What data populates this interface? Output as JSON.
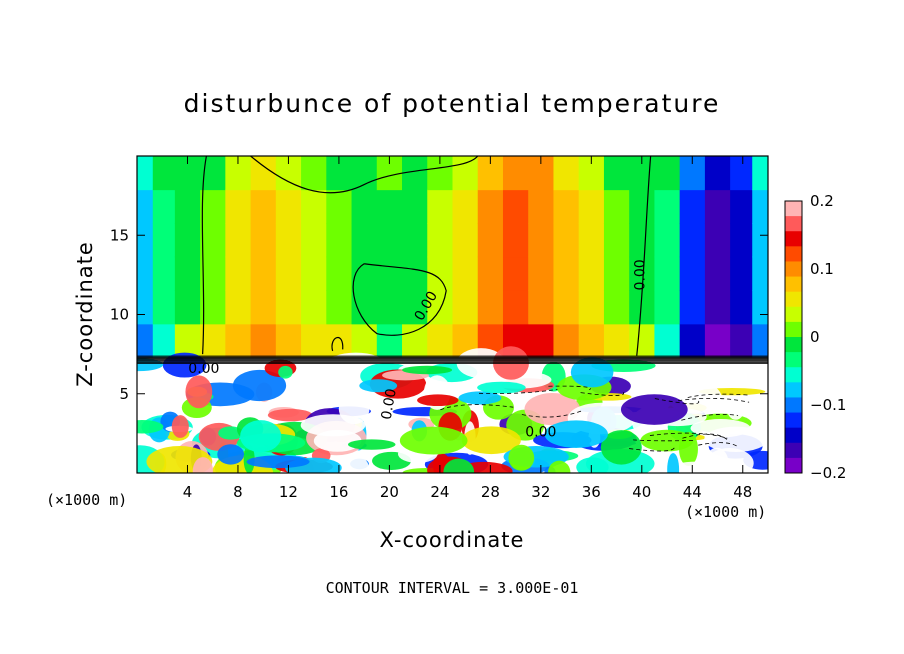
{
  "chart_data": {
    "type": "heatmap",
    "title": "disturbunce of potential temperature",
    "xlabel": "X-coordinate",
    "ylabel": "Z-coordinate",
    "x_unit": "(×1000 m)",
    "y_unit": "(×1000 m)",
    "xlim": [
      0,
      50
    ],
    "ylim": [
      0,
      20
    ],
    "x_ticks": [
      4,
      8,
      12,
      16,
      20,
      24,
      28,
      32,
      36,
      40,
      44,
      48
    ],
    "y_ticks": [
      5,
      10,
      15
    ],
    "colorbar": {
      "range": [
        -0.2,
        0.2
      ],
      "ticks": [
        "0.2",
        "0.1",
        "0",
        "−0.1",
        "−0.2"
      ],
      "colors": [
        "#ffb4b4",
        "#ff5a5a",
        "#e80000",
        "#ff4b00",
        "#ff8c00",
        "#ffc000",
        "#f0e600",
        "#c8ff00",
        "#6eff00",
        "#00e63c",
        "#00ff78",
        "#00ffd2",
        "#00c8ff",
        "#0078ff",
        "#0028ff",
        "#0000c8",
        "#3c00b4",
        "#7800c8"
      ]
    },
    "contour_interval": "CONTOUR INTERVAL = 3.000E-01",
    "contour_labels": [
      "0.00",
      "0.00",
      "0.00",
      "0.00",
      "0.00"
    ],
    "upper_layer_columns": [
      {
        "x": 0.5,
        "value": -0.08
      },
      {
        "x": 2,
        "value": -0.04
      },
      {
        "x": 4,
        "value": 0.0
      },
      {
        "x": 6,
        "value": 0.02
      },
      {
        "x": 8,
        "value": 0.05
      },
      {
        "x": 10,
        "value": 0.07
      },
      {
        "x": 12,
        "value": 0.06
      },
      {
        "x": 14,
        "value": 0.04
      },
      {
        "x": 16,
        "value": 0.02
      },
      {
        "x": 18,
        "value": 0.0
      },
      {
        "x": 20,
        "value": -0.01
      },
      {
        "x": 22,
        "value": 0.0
      },
      {
        "x": 24,
        "value": 0.03
      },
      {
        "x": 26,
        "value": 0.06
      },
      {
        "x": 28,
        "value": 0.1
      },
      {
        "x": 30,
        "value": 0.12
      },
      {
        "x": 32,
        "value": 0.11
      },
      {
        "x": 34,
        "value": 0.08
      },
      {
        "x": 36,
        "value": 0.05
      },
      {
        "x": 38,
        "value": 0.02
      },
      {
        "x": 40,
        "value": 0.0
      },
      {
        "x": 42,
        "value": -0.04
      },
      {
        "x": 44,
        "value": -0.12
      },
      {
        "x": 46,
        "value": -0.17
      },
      {
        "x": 48,
        "value": -0.14
      },
      {
        "x": 49.5,
        "value": -0.07
      }
    ]
  }
}
